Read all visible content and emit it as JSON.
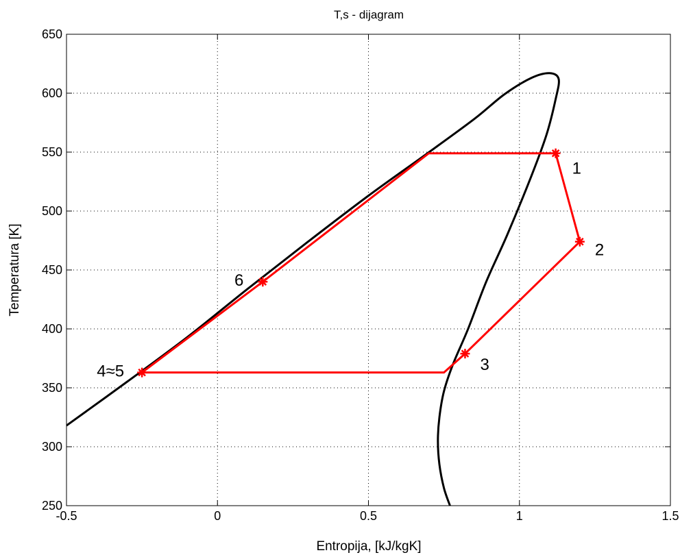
{
  "chart_data": {
    "type": "line",
    "title": "T,s - dijagram",
    "xlabel": "Entropija, [kJ/kgK]",
    "ylabel": "Temperatura [K]",
    "xlim": [
      -0.5,
      1.5
    ],
    "ylim": [
      250,
      650
    ],
    "xticks": [
      -0.5,
      0,
      0.5,
      1,
      1.5
    ],
    "xtick_labels": [
      "-0.5",
      "0",
      "0.5",
      "1",
      "1.5"
    ],
    "yticks": [
      250,
      300,
      350,
      400,
      450,
      500,
      550,
      600,
      650
    ],
    "ytick_labels": [
      "250",
      "300",
      "350",
      "400",
      "450",
      "500",
      "550",
      "600",
      "650"
    ],
    "grid": true,
    "grid_style": "dotted",
    "colors": {
      "saturation_curve": "#000000",
      "cycle": "#ff0000",
      "point_markers": "#ff0000"
    },
    "series": [
      {
        "role": "saturation-curve",
        "x": [
          -0.5,
          -0.3,
          -0.1,
          0.1,
          0.3,
          0.5,
          0.69,
          0.85,
          0.95,
          1.04,
          1.1,
          1.13,
          1.12,
          1.09,
          1.04,
          0.96,
          0.89,
          0.83,
          0.78,
          0.75,
          0.735,
          0.73,
          0.735,
          0.75,
          0.77
        ],
        "y": [
          318,
          355,
          393,
          434,
          474,
          513,
          548,
          578,
          599,
          613,
          617,
          612,
          595,
          565,
          530,
          480,
          440,
          400,
          370,
          347,
          325,
          305,
          285,
          265,
          250
        ]
      },
      {
        "role": "cycle",
        "x": [
          1.12,
          1.2,
          0.82,
          0.75,
          -0.25,
          0.15,
          0.7,
          1.12
        ],
        "y": [
          549,
          474,
          379,
          363,
          363,
          440,
          549,
          549
        ]
      }
    ],
    "points": [
      {
        "label": "1",
        "x": 1.12,
        "y": 549
      },
      {
        "label": "2",
        "x": 1.2,
        "y": 474
      },
      {
        "label": "3",
        "x": 0.82,
        "y": 379
      },
      {
        "label": "4≈5",
        "x": -0.25,
        "y": 363
      },
      {
        "label": "6",
        "x": 0.15,
        "y": 440
      }
    ]
  }
}
